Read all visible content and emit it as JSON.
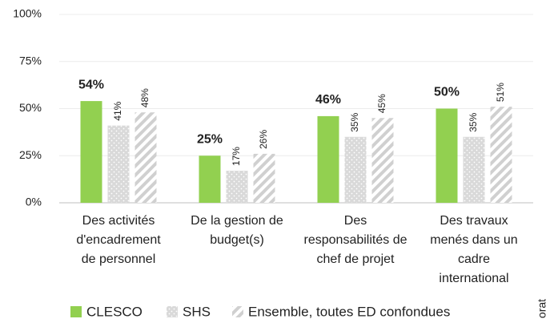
{
  "chart_data": {
    "type": "bar",
    "categories": [
      [
        "Des activités",
        "d'encadrement",
        "de personnel"
      ],
      [
        "De la gestion de",
        "budget(s)"
      ],
      [
        "Des",
        "responsabilités de",
        "chef de projet"
      ],
      [
        "Des travaux",
        "menés dans un",
        "cadre",
        "international"
      ]
    ],
    "series": [
      {
        "name": "CLESCO",
        "color": "#92d050",
        "pattern": "solid",
        "values": [
          54,
          25,
          46,
          50
        ],
        "value_labels": [
          "54%",
          "25%",
          "46%",
          "50%"
        ]
      },
      {
        "name": "SHS",
        "color": "#d9d9d9",
        "pattern": "dots",
        "values": [
          41,
          17,
          35,
          35
        ],
        "value_labels": [
          "41%",
          "17%",
          "35%",
          "35%"
        ]
      },
      {
        "name": "Ensemble, toutes ED confondues",
        "color": "#d9d9d9",
        "pattern": "hatch",
        "values": [
          48,
          26,
          45,
          51
        ],
        "value_labels": [
          "48%",
          "26%",
          "45%",
          "51%"
        ]
      }
    ],
    "ylim": [
      0,
      100
    ],
    "yticks": [
      {
        "value": 0,
        "label": "0%"
      },
      {
        "value": 25,
        "label": "25%"
      },
      {
        "value": 50,
        "label": "50%"
      },
      {
        "value": 75,
        "label": "75%"
      },
      {
        "value": 100,
        "label": "100%"
      }
    ],
    "grid": true,
    "legend": "bottom",
    "source": "orat"
  }
}
